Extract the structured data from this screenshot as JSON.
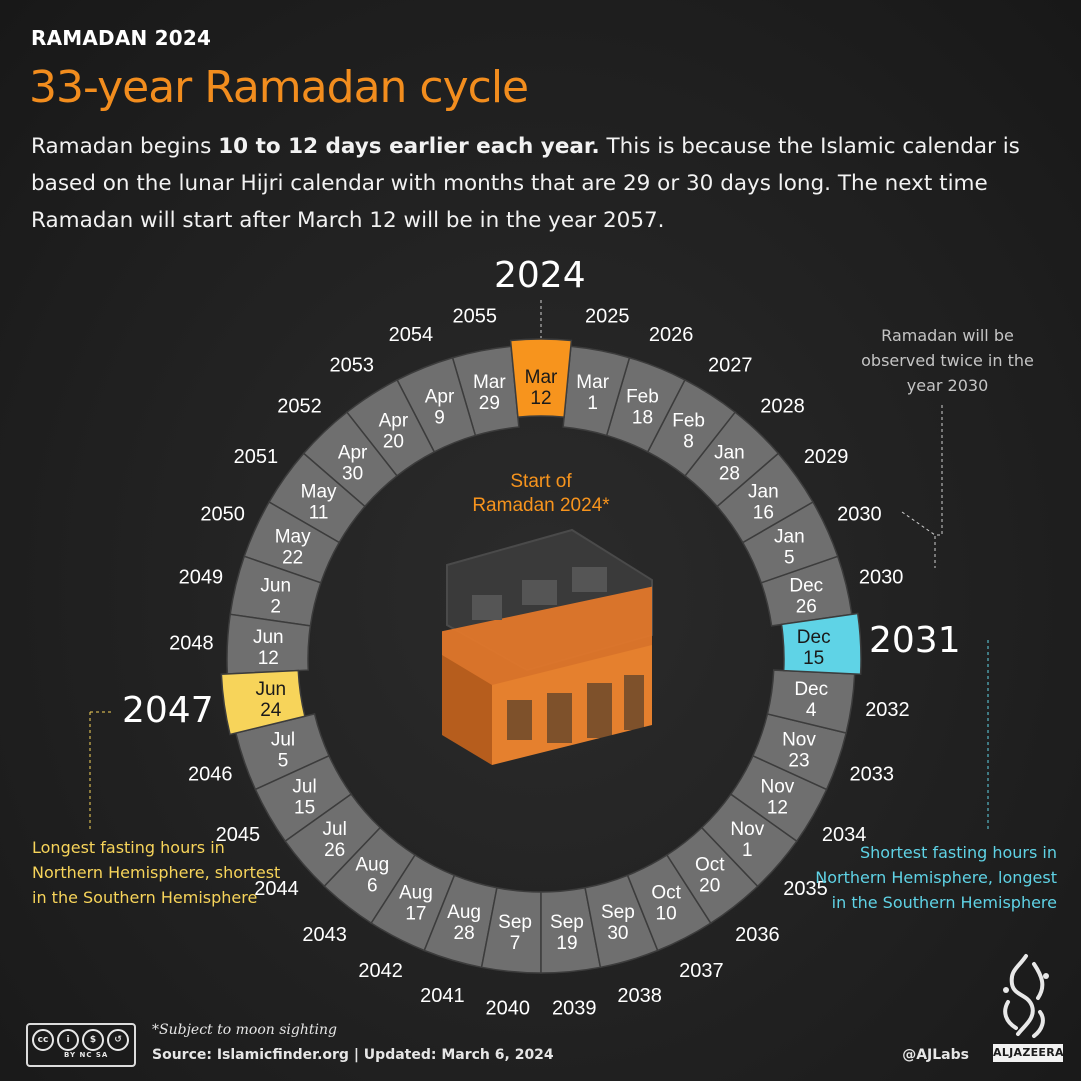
{
  "header": {
    "kicker": "RAMADAN 2024",
    "title": "33-year Ramadan cycle",
    "intro_plain_1": "Ramadan begins ",
    "intro_bold": "10 to 12 days earlier each year.",
    "intro_plain_2": " This is because the Islamic calendar is based on the lunar Hijri calendar with months that are 29 or 30 days long. The next time Ramadan will start after March 12 will be in the year 2057."
  },
  "chart_data": {
    "type": "radial",
    "segments": [
      {
        "year": "2024",
        "month": "Mar",
        "day": "12",
        "highlight": "orange"
      },
      {
        "year": "2025",
        "month": "Mar",
        "day": "1"
      },
      {
        "year": "2026",
        "month": "Feb",
        "day": "18"
      },
      {
        "year": "2027",
        "month": "Feb",
        "day": "8"
      },
      {
        "year": "2028",
        "month": "Jan",
        "day": "28"
      },
      {
        "year": "2029",
        "month": "Jan",
        "day": "16"
      },
      {
        "year": "2030",
        "month": "Jan",
        "day": "5"
      },
      {
        "year": "2030",
        "month": "Dec",
        "day": "26"
      },
      {
        "year": "2031",
        "month": "Dec",
        "day": "15",
        "highlight": "cyan"
      },
      {
        "year": "2032",
        "month": "Dec",
        "day": "4"
      },
      {
        "year": "2033",
        "month": "Nov",
        "day": "23"
      },
      {
        "year": "2034",
        "month": "Nov",
        "day": "12"
      },
      {
        "year": "2035",
        "month": "Nov",
        "day": "1"
      },
      {
        "year": "2036",
        "month": "Oct",
        "day": "20"
      },
      {
        "year": "2037",
        "month": "Oct",
        "day": "10"
      },
      {
        "year": "2038",
        "month": "Sep",
        "day": "30"
      },
      {
        "year": "2039",
        "month": "Sep",
        "day": "19"
      },
      {
        "year": "2040",
        "month": "Sep",
        "day": "7"
      },
      {
        "year": "2041",
        "month": "Aug",
        "day": "28"
      },
      {
        "year": "2042",
        "month": "Aug",
        "day": "17"
      },
      {
        "year": "2043",
        "month": "Aug",
        "day": "6"
      },
      {
        "year": "2044",
        "month": "Jul",
        "day": "26"
      },
      {
        "year": "2045",
        "month": "Jul",
        "day": "15"
      },
      {
        "year": "2046",
        "month": "Jul",
        "day": "5"
      },
      {
        "year": "2047",
        "month": "Jun",
        "day": "24",
        "highlight": "yellow"
      },
      {
        "year": "2048",
        "month": "Jun",
        "day": "12"
      },
      {
        "year": "2049",
        "month": "Jun",
        "day": "2"
      },
      {
        "year": "2050",
        "month": "May",
        "day": "22"
      },
      {
        "year": "2051",
        "month": "May",
        "day": "11"
      },
      {
        "year": "2052",
        "month": "Apr",
        "day": "30"
      },
      {
        "year": "2053",
        "month": "Apr",
        "day": "20"
      },
      {
        "year": "2054",
        "month": "Apr",
        "day": "9"
      },
      {
        "year": "2055",
        "month": "Mar",
        "day": "29"
      }
    ]
  },
  "annotations": {
    "start_label": "Start of Ramadan 2024*",
    "twice_note": "Ramadan will be observed twice in the year 2030",
    "longest_note": "Longest fasting hours in Northern Hemisphere, shortest in the Southern Hemisphere",
    "shortest_note": "Shortest fasting hours in Northern Hemisphere, longest in the Southern Hemisphere",
    "year_2024": "2024",
    "year_2031": "2031",
    "year_2047": "2047"
  },
  "footer": {
    "note": "*Subject to moon sighting",
    "source": "Source: Islamicfinder.org  |  Updated: March 6, 2024",
    "handle": "@AJLabs",
    "brand": "ALJAZEERA",
    "license": "BY  NC  SA"
  },
  "colors": {
    "orange": "#f7941d",
    "cyan": "#5fd3e6",
    "yellow": "#f7d45a",
    "ring": "#6f6f6f",
    "title": "#f28d1e"
  }
}
